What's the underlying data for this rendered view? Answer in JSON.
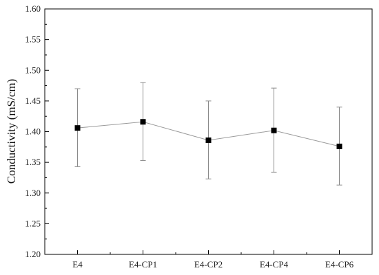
{
  "chart_data": {
    "type": "line",
    "title": "",
    "xlabel": "",
    "ylabel": "Conductivity (mS/cm)",
    "ylim": [
      1.2,
      1.6
    ],
    "yticks": [
      "1.20",
      "1.25",
      "1.30",
      "1.35",
      "1.40",
      "1.45",
      "1.50",
      "1.55",
      "1.60"
    ],
    "categories": [
      "E4",
      "E4-CP1",
      "E4-CP2",
      "E4-CP4",
      "E4-CP6"
    ],
    "series": [
      {
        "values": [
          1.406,
          1.416,
          1.386,
          1.402,
          1.376
        ],
        "error_low": [
          1.343,
          1.353,
          1.323,
          1.334,
          1.313
        ],
        "error_high": [
          1.47,
          1.48,
          1.45,
          1.471,
          1.44
        ]
      }
    ],
    "grid": false,
    "legend": "none",
    "colors": {
      "line": "#9a9a9a",
      "marker": "#000000",
      "errorbar": "#8a8a8a",
      "axis": "#000000"
    }
  }
}
